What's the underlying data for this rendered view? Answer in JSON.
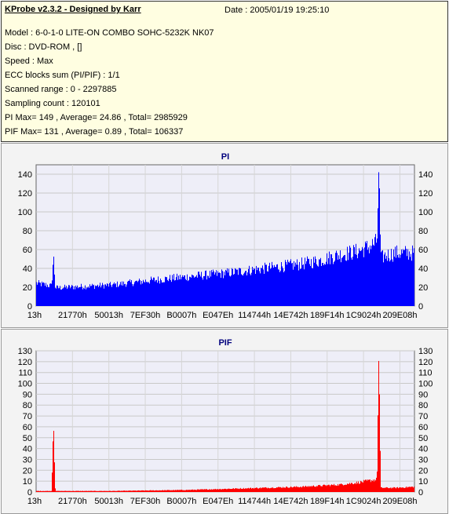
{
  "header": {
    "title": "KProbe v2.3.2 - Designed by Karr",
    "date": "Date : 2005/01/19 19:25:10",
    "lines": [
      "Model : 6-0-1-0 LITE-ON COMBO SOHC-5232K NK07",
      "Disc : DVD-ROM ,  []",
      "Speed : Max",
      "ECC blocks sum (PI/PIF) : 1/1",
      "Scanned range : 0 - 2297885",
      "Sampling count : 120101",
      "PI Max= 149 , Average= 24.86 , Total= 2985929",
      "PIF Max= 131 , Average= 0.89 , Total= 106337"
    ]
  },
  "colors": {
    "pi": "#0000ff",
    "pif": "#ff0000",
    "plot_bg": "#eeeef8",
    "info_bg": "#fffee1"
  },
  "chart_data": [
    {
      "type": "area",
      "title": "PI",
      "xlabel": "",
      "ylabel": "",
      "ylim": [
        0,
        150
      ],
      "yticks": [
        0,
        20,
        40,
        60,
        80,
        100,
        120,
        140
      ],
      "xtick_labels": [
        "13h",
        "21770h",
        "50013h",
        "7EF30h",
        "B0007h",
        "E047Eh",
        "114744h",
        "14E742h",
        "189F14h",
        "1C9024h",
        "209E08h"
      ],
      "grid": true,
      "x_fraction": [
        0,
        0.04,
        0.045,
        0.05,
        0.06,
        0.1,
        0.2,
        0.3,
        0.4,
        0.5,
        0.6,
        0.7,
        0.75,
        0.8,
        0.85,
        0.88,
        0.9,
        0.905,
        0.91,
        0.92,
        0.95,
        1.0
      ],
      "values": [
        25,
        22,
        55,
        20,
        20,
        21,
        23,
        28,
        32,
        36,
        41,
        46,
        50,
        56,
        60,
        65,
        70,
        149,
        52,
        55,
        58,
        58
      ],
      "max": 149,
      "average": 24.86
    },
    {
      "type": "area",
      "title": "PIF",
      "xlabel": "",
      "ylabel": "",
      "ylim": [
        0,
        130
      ],
      "yticks": [
        0,
        10,
        20,
        30,
        40,
        50,
        60,
        70,
        80,
        90,
        100,
        110,
        120,
        130
      ],
      "xtick_labels": [
        "13h",
        "21770h",
        "50013h",
        "7EF30h",
        "B0007h",
        "E047Eh",
        "114744h",
        "14E742h",
        "189F14h",
        "1C9024h",
        "209E08h"
      ],
      "grid": true,
      "x_fraction": [
        0,
        0.04,
        0.045,
        0.05,
        0.2,
        0.4,
        0.6,
        0.7,
        0.8,
        0.85,
        0.9,
        0.905,
        0.91,
        0.95,
        1.0
      ],
      "values": [
        1,
        1,
        70,
        1,
        1,
        2,
        4,
        5,
        7,
        9,
        12,
        131,
        4,
        4,
        5
      ],
      "max": 131,
      "average": 0.89
    }
  ]
}
